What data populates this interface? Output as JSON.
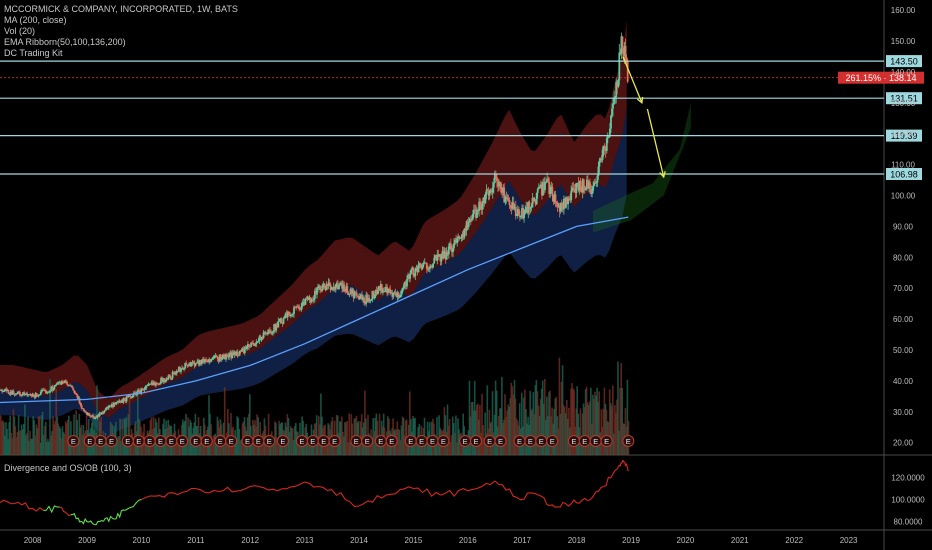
{
  "header": {
    "title": "MCCORMICK & COMPANY, INCORPORATED, 1W, BATS",
    "indicators": [
      "MA (200, close)",
      "Vol (20)",
      "EMA Ribborn(50,100,136,200)",
      "DC Trading Kit"
    ]
  },
  "oscillator": {
    "title": "Divergence and OS/OB (100, 3)",
    "yticks": [
      "120.0000",
      "100.0000",
      "80.0000"
    ],
    "tick_values": [
      120,
      100,
      80
    ],
    "range": [
      72,
      138
    ]
  },
  "colors": {
    "background": "#000000",
    "up": "#5ec9a0",
    "down": "#e8745c",
    "level_line": "#9fd9e0",
    "level_label_bg": "#9fd9e0",
    "current_price_bg": "#d22f2f",
    "arrow": "#e8e84a",
    "osc_line": "#d8281e",
    "osc_low": "#5ee04a"
  },
  "chart_data": {
    "type": "candlestick",
    "symbol": "MCCORMICK & COMPANY, INCORPORATED",
    "timeframe": "1W",
    "x_ticks": [
      "2008",
      "2009",
      "2010",
      "2011",
      "2012",
      "2013",
      "2014",
      "2015",
      "2016",
      "2017",
      "2018",
      "2019",
      "2020",
      "2021",
      "2022",
      "2023"
    ],
    "x_tick_years": [
      2008,
      2009,
      2010,
      2011,
      2012,
      2013,
      2014,
      2015,
      2016,
      2017,
      2018,
      2019,
      2020,
      2021,
      2022,
      2023
    ],
    "y_ticks": [
      "160.00",
      "150.00",
      "140.00",
      "130.00",
      "120.00",
      "110.00",
      "100.00",
      "90.00",
      "80.00",
      "70.00",
      "60.00",
      "50.00",
      "40.00",
      "30.00",
      "20.00"
    ],
    "y_tick_values": [
      160,
      150,
      140,
      130,
      120,
      110,
      100,
      90,
      80,
      70,
      60,
      50,
      40,
      30,
      20
    ],
    "y_range": [
      16,
      162
    ],
    "x_range": [
      2007.4,
      2023.65
    ],
    "price_path": [
      [
        2007.4,
        37
      ],
      [
        2007.7,
        36
      ],
      [
        2008.0,
        35
      ],
      [
        2008.3,
        37
      ],
      [
        2008.55,
        40
      ],
      [
        2008.75,
        37
      ],
      [
        2008.95,
        30
      ],
      [
        2009.15,
        28
      ],
      [
        2009.35,
        31
      ],
      [
        2009.6,
        33
      ],
      [
        2009.9,
        36
      ],
      [
        2010.2,
        39
      ],
      [
        2010.5,
        41
      ],
      [
        2010.8,
        45
      ],
      [
        2011.0,
        46
      ],
      [
        2011.3,
        47
      ],
      [
        2011.6,
        48
      ],
      [
        2011.9,
        50
      ],
      [
        2012.2,
        54
      ],
      [
        2012.5,
        58
      ],
      [
        2012.8,
        63
      ],
      [
        2013.0,
        65
      ],
      [
        2013.3,
        70
      ],
      [
        2013.6,
        71
      ],
      [
        2013.9,
        68
      ],
      [
        2014.1,
        66
      ],
      [
        2014.4,
        70
      ],
      [
        2014.7,
        67
      ],
      [
        2014.95,
        75
      ],
      [
        2015.3,
        78
      ],
      [
        2015.6,
        81
      ],
      [
        2015.9,
        88
      ],
      [
        2016.2,
        96
      ],
      [
        2016.5,
        105
      ],
      [
        2016.7,
        99
      ],
      [
        2016.95,
        93
      ],
      [
        2017.2,
        98
      ],
      [
        2017.45,
        104
      ],
      [
        2017.7,
        96
      ],
      [
        2017.95,
        101
      ],
      [
        2018.15,
        104
      ],
      [
        2018.3,
        102
      ],
      [
        2018.45,
        112
      ],
      [
        2018.6,
        120
      ],
      [
        2018.75,
        138
      ],
      [
        2018.83,
        150
      ],
      [
        2018.9,
        146
      ],
      [
        2018.95,
        138
      ]
    ],
    "moving_average_200": [
      [
        2007.4,
        33
      ],
      [
        2009.0,
        34
      ],
      [
        2010.0,
        36
      ],
      [
        2011.0,
        40
      ],
      [
        2012.0,
        45
      ],
      [
        2013.0,
        52
      ],
      [
        2014.0,
        60
      ],
      [
        2015.0,
        68
      ],
      [
        2016.0,
        76
      ],
      [
        2017.0,
        83
      ],
      [
        2018.0,
        90
      ],
      [
        2018.95,
        93
      ]
    ],
    "levels": [
      {
        "price": 143.5,
        "label": "143.50"
      },
      {
        "price": 131.51,
        "label": "131.51"
      },
      {
        "price": 119.39,
        "label": "119.39"
      },
      {
        "price": 106.98,
        "label": "106.98"
      }
    ],
    "current_price": {
      "price": 138.14,
      "label": "261.15% · 138.14"
    },
    "projection_arrows": [
      {
        "from": [
          2018.85,
          145
        ],
        "to": [
          2019.2,
          130
        ]
      },
      {
        "from": [
          2019.3,
          128
        ],
        "to": [
          2019.6,
          106
        ]
      }
    ],
    "earnings_markers": [
      {
        "x": 2008.75,
        "label": "E"
      },
      {
        "x": 2009.05,
        "label": "E"
      },
      {
        "x": 2009.25,
        "label": "E"
      },
      {
        "x": 2009.45,
        "label": "E"
      },
      {
        "x": 2009.75,
        "label": "E"
      },
      {
        "x": 2009.95,
        "label": "E"
      },
      {
        "x": 2010.15,
        "label": "E"
      },
      {
        "x": 2010.35,
        "label": "E"
      },
      {
        "x": 2010.55,
        "label": "E"
      },
      {
        "x": 2010.75,
        "label": "E"
      },
      {
        "x": 2011.0,
        "label": "E"
      },
      {
        "x": 2011.2,
        "label": "E"
      },
      {
        "x": 2011.45,
        "label": "E"
      },
      {
        "x": 2011.65,
        "label": "E"
      },
      {
        "x": 2011.95,
        "label": "E"
      },
      {
        "x": 2012.15,
        "label": "E"
      },
      {
        "x": 2012.35,
        "label": "E"
      },
      {
        "x": 2012.6,
        "label": "E"
      },
      {
        "x": 2012.95,
        "label": "E"
      },
      {
        "x": 2013.15,
        "label": "E"
      },
      {
        "x": 2013.35,
        "label": "E"
      },
      {
        "x": 2013.55,
        "label": "E"
      },
      {
        "x": 2013.95,
        "label": "E"
      },
      {
        "x": 2014.15,
        "label": "E"
      },
      {
        "x": 2014.4,
        "label": "E"
      },
      {
        "x": 2014.6,
        "label": "E"
      },
      {
        "x": 2014.95,
        "label": "E"
      },
      {
        "x": 2015.15,
        "label": "E"
      },
      {
        "x": 2015.35,
        "label": "E"
      },
      {
        "x": 2015.55,
        "label": "E"
      },
      {
        "x": 2015.95,
        "label": "E"
      },
      {
        "x": 2016.15,
        "label": "E"
      },
      {
        "x": 2016.4,
        "label": "E"
      },
      {
        "x": 2016.6,
        "label": "E"
      },
      {
        "x": 2016.95,
        "label": "E"
      },
      {
        "x": 2017.15,
        "label": "E"
      },
      {
        "x": 2017.35,
        "label": "E"
      },
      {
        "x": 2017.55,
        "label": "E"
      },
      {
        "x": 2017.95,
        "label": "E"
      },
      {
        "x": 2018.15,
        "label": "E"
      },
      {
        "x": 2018.35,
        "label": "E"
      },
      {
        "x": 2018.55,
        "label": "E"
      },
      {
        "x": 2018.95,
        "label": "E"
      }
    ],
    "oscillator_path": [
      [
        2007.4,
        97
      ],
      [
        2007.8,
        95
      ],
      [
        2008.2,
        90
      ],
      [
        2008.5,
        93
      ],
      [
        2008.7,
        86
      ],
      [
        2008.9,
        80
      ],
      [
        2009.1,
        78
      ],
      [
        2009.3,
        80
      ],
      [
        2009.5,
        82
      ],
      [
        2009.7,
        90
      ],
      [
        2010.0,
        100
      ],
      [
        2010.5,
        106
      ],
      [
        2011.0,
        110
      ],
      [
        2011.5,
        108
      ],
      [
        2012.0,
        112
      ],
      [
        2012.5,
        108
      ],
      [
        2013.0,
        116
      ],
      [
        2013.5,
        109
      ],
      [
        2014.0,
        94
      ],
      [
        2014.5,
        104
      ],
      [
        2015.0,
        110
      ],
      [
        2015.5,
        104
      ],
      [
        2016.0,
        108
      ],
      [
        2016.5,
        117
      ],
      [
        2016.9,
        102
      ],
      [
        2017.3,
        104
      ],
      [
        2017.6,
        93
      ],
      [
        2017.9,
        96
      ],
      [
        2018.2,
        99
      ],
      [
        2018.5,
        112
      ],
      [
        2018.75,
        128
      ],
      [
        2018.85,
        136
      ],
      [
        2018.95,
        126
      ]
    ]
  }
}
